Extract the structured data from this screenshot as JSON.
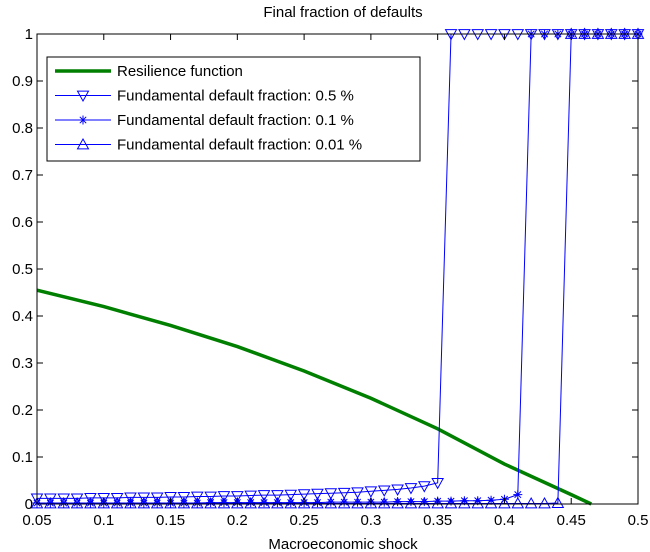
{
  "chart_data": {
    "type": "line",
    "title": "Final fraction of defaults",
    "xlabel": "Macroeconomic shock",
    "ylabel": "",
    "xlim": [
      0.05,
      0.5
    ],
    "ylim": [
      0,
      1
    ],
    "xticks": [
      0.05,
      0.1,
      0.15,
      0.2,
      0.25,
      0.3,
      0.35,
      0.4,
      0.45,
      0.5
    ],
    "xtick_labels": [
      "0.05",
      "0.1",
      "0.15",
      "0.2",
      "0.25",
      "0.3",
      "0.35",
      "0.4",
      "0.45",
      "0.5"
    ],
    "yticks": [
      0,
      0.1,
      0.2,
      0.3,
      0.4,
      0.5,
      0.6,
      0.7,
      0.8,
      0.9,
      1
    ],
    "ytick_labels": [
      "0",
      "0.1",
      "0.2",
      "0.3",
      "0.4",
      "0.5",
      "0.6",
      "0.7",
      "0.8",
      "0.9",
      "1"
    ],
    "grid": false,
    "legend_position": "top-left",
    "series": [
      {
        "name": "Resilience function",
        "color": "#007f00",
        "line_width": "thick",
        "marker": "none",
        "x": [
          0.05,
          0.1,
          0.15,
          0.2,
          0.25,
          0.3,
          0.35,
          0.4,
          0.45,
          0.465
        ],
        "y": [
          0.455,
          0.42,
          0.38,
          0.335,
          0.283,
          0.225,
          0.16,
          0.085,
          0.02,
          0.0
        ]
      },
      {
        "name": "Fundamental default fraction: 0.5 %",
        "color": "#0000ff",
        "marker": "triangle-down",
        "x": [
          0.05,
          0.06,
          0.07,
          0.08,
          0.09,
          0.1,
          0.11,
          0.12,
          0.13,
          0.14,
          0.15,
          0.16,
          0.17,
          0.18,
          0.19,
          0.2,
          0.21,
          0.22,
          0.23,
          0.24,
          0.25,
          0.26,
          0.27,
          0.28,
          0.29,
          0.3,
          0.31,
          0.32,
          0.33,
          0.34,
          0.35,
          0.36,
          0.37,
          0.38,
          0.39,
          0.4,
          0.41,
          0.42,
          0.43,
          0.44,
          0.45,
          0.46,
          0.47,
          0.48,
          0.49,
          0.5
        ],
        "y": [
          0.012,
          0.012,
          0.012,
          0.012,
          0.013,
          0.013,
          0.013,
          0.014,
          0.014,
          0.014,
          0.015,
          0.015,
          0.016,
          0.016,
          0.017,
          0.017,
          0.018,
          0.019,
          0.019,
          0.02,
          0.021,
          0.022,
          0.023,
          0.024,
          0.025,
          0.027,
          0.029,
          0.031,
          0.034,
          0.038,
          0.045,
          1,
          1,
          1,
          1,
          1,
          1,
          1,
          1,
          1,
          1,
          1,
          1,
          1,
          1,
          1
        ]
      },
      {
        "name": "Fundamental default fraction: 0.1 %",
        "color": "#0000ff",
        "marker": "star",
        "x": [
          0.05,
          0.06,
          0.07,
          0.08,
          0.09,
          0.1,
          0.11,
          0.12,
          0.13,
          0.14,
          0.15,
          0.16,
          0.17,
          0.18,
          0.19,
          0.2,
          0.21,
          0.22,
          0.23,
          0.24,
          0.25,
          0.26,
          0.27,
          0.28,
          0.29,
          0.3,
          0.31,
          0.32,
          0.33,
          0.34,
          0.35,
          0.36,
          0.37,
          0.38,
          0.39,
          0.4,
          0.41,
          0.42,
          0.43,
          0.44,
          0.45,
          0.46,
          0.47,
          0.48,
          0.49,
          0.5
        ],
        "y": [
          0.002,
          0.002,
          0.002,
          0.002,
          0.002,
          0.002,
          0.002,
          0.002,
          0.002,
          0.002,
          0.002,
          0.002,
          0.002,
          0.003,
          0.003,
          0.003,
          0.003,
          0.003,
          0.003,
          0.003,
          0.003,
          0.003,
          0.004,
          0.004,
          0.004,
          0.004,
          0.004,
          0.005,
          0.005,
          0.005,
          0.006,
          0.006,
          0.007,
          0.007,
          0.008,
          0.01,
          0.02,
          1,
          1,
          1,
          1,
          1,
          1,
          1,
          1,
          1
        ]
      },
      {
        "name": "Fundamental default fraction: 0.01 %",
        "color": "#0000ff",
        "marker": "triangle-up",
        "x": [
          0.05,
          0.06,
          0.07,
          0.08,
          0.09,
          0.1,
          0.11,
          0.12,
          0.13,
          0.14,
          0.15,
          0.16,
          0.17,
          0.18,
          0.19,
          0.2,
          0.21,
          0.22,
          0.23,
          0.24,
          0.25,
          0.26,
          0.27,
          0.28,
          0.29,
          0.3,
          0.31,
          0.32,
          0.33,
          0.34,
          0.35,
          0.36,
          0.37,
          0.38,
          0.39,
          0.4,
          0.41,
          0.42,
          0.43,
          0.44,
          0.45,
          0.46,
          0.47,
          0.48,
          0.49,
          0.5
        ],
        "y": [
          0.001,
          0.001,
          0.001,
          0.001,
          0.001,
          0.001,
          0.001,
          0.001,
          0.001,
          0.001,
          0.001,
          0.001,
          0.001,
          0.001,
          0.001,
          0.001,
          0.001,
          0.001,
          0.001,
          0.001,
          0.001,
          0.001,
          0.001,
          0.001,
          0.001,
          0.001,
          0.001,
          0.001,
          0.001,
          0.001,
          0.001,
          0.001,
          0.001,
          0.001,
          0.001,
          0.001,
          0.001,
          0.001,
          0.001,
          0.002,
          1,
          1,
          1,
          1,
          1,
          1
        ]
      }
    ]
  }
}
